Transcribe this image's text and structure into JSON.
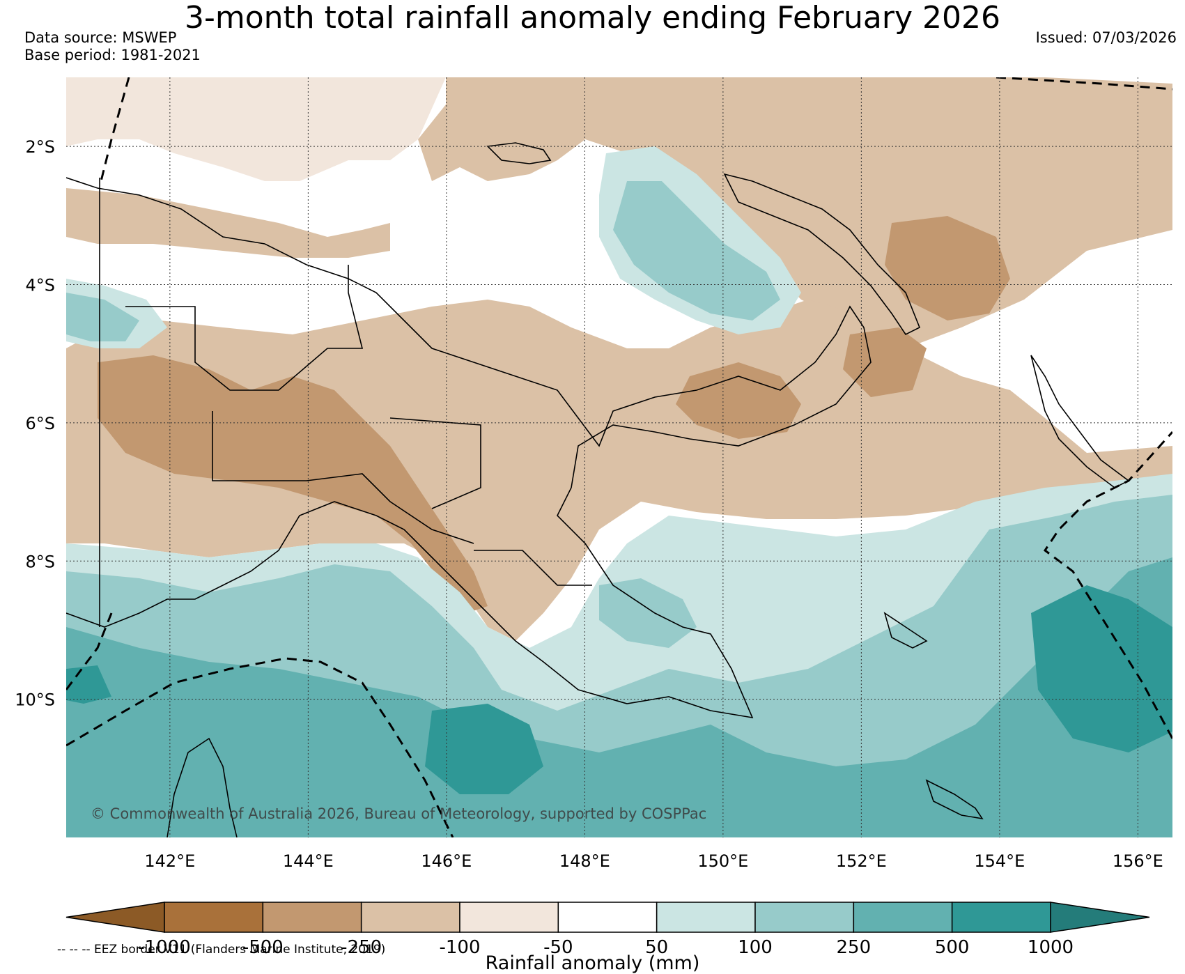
{
  "title": "3-month total rainfall anomaly ending February 2026",
  "data_source": "Data source: MSWEP",
  "base_period": "Base period: 1981-2021",
  "issued": "Issued: 07/03/2026",
  "credit": "© Commonwealth of Australia 2026, Bureau of Meteorology, supported by COSPPac",
  "eez_note": "-- -- -- EEZ border V11 (Flanders Marine Institute, 2019)",
  "colorbar_title": "Rainfall anomaly (mm)",
  "map": {
    "lon_range": [
      140.5,
      156.5
    ],
    "lat_range": [
      -12,
      -1
    ]
  },
  "lat_ticks": [
    {
      "value": -2,
      "label": "2°S"
    },
    {
      "value": -4,
      "label": "4°S"
    },
    {
      "value": -6,
      "label": "6°S"
    },
    {
      "value": -8,
      "label": "8°S"
    },
    {
      "value": -10,
      "label": "10°S"
    }
  ],
  "lon_ticks": [
    {
      "value": 142,
      "label": "142°E"
    },
    {
      "value": 144,
      "label": "144°E"
    },
    {
      "value": 146,
      "label": "146°E"
    },
    {
      "value": 148,
      "label": "148°E"
    },
    {
      "value": 150,
      "label": "150°E"
    },
    {
      "value": 152,
      "label": "152°E"
    },
    {
      "value": 154,
      "label": "154°E"
    },
    {
      "value": 156,
      "label": "156°E"
    }
  ],
  "colorbar": {
    "boundaries": [
      "-1000",
      "-500",
      "-250",
      "-100",
      "-50",
      "50",
      "100",
      "250",
      "500",
      "1000"
    ],
    "colors": [
      "#a9713a",
      "#c29870",
      "#dbc1a6",
      "#f2e6dc",
      "#ffffff",
      "#cbe5e3",
      "#97cbca",
      "#62b1b0",
      "#2f9896"
    ],
    "under_color": "#8c5a26",
    "over_color": "#247c7a"
  },
  "palette": {
    "dry_strong": "#a9713a",
    "dry_mid": "#c29870",
    "dry_light": "#dbc1a6",
    "dry_faint": "#f2e6dc",
    "neutral": "#ffffff",
    "wet_faint": "#cbe5e3",
    "wet_light": "#97cbca",
    "wet_mid": "#62b1b0",
    "wet_strong": "#2f9896"
  }
}
